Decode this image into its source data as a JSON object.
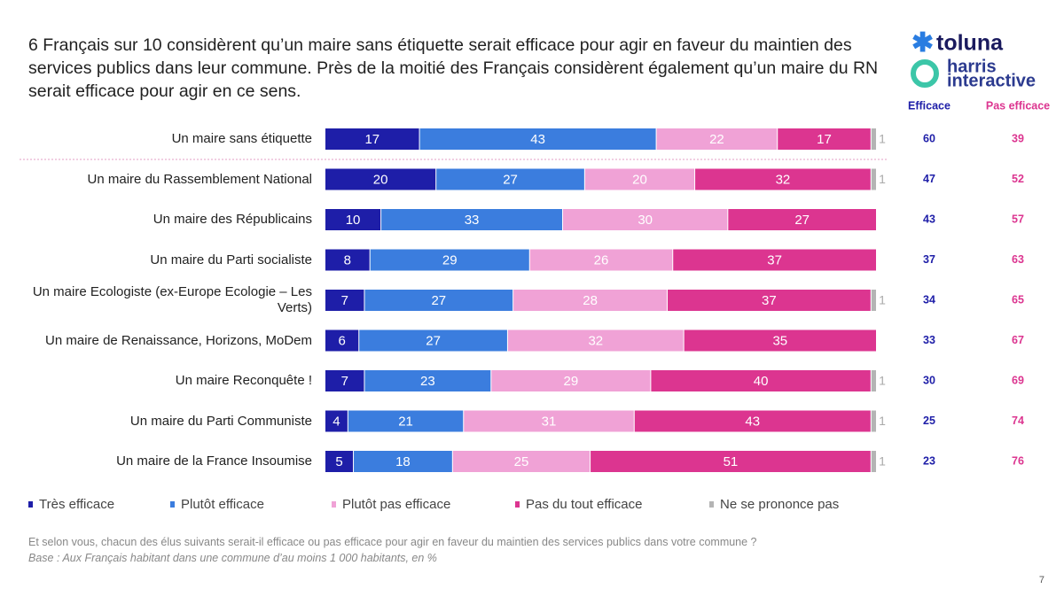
{
  "chart_data": {
    "type": "stacked-bar",
    "title": "6 Français sur 10 considèrent qu’un maire sans étiquette serait efficace pour agir en faveur du maintien des services publics dans leur commune. Près de la moitié des Français considèrent également qu’un maire du RN serait efficace pour agir en ce sens.",
    "categories": [
      "Un maire sans étiquette",
      "Un maire du Rassemblement National",
      "Un maire des Républicains",
      "Un maire du Parti socialiste",
      "Un maire Ecologiste (ex-Europe Ecologie – Les Verts)",
      "Un maire de Renaissance, Horizons, MoDem",
      "Un maire Reconquête !",
      "Un maire du Parti Communiste",
      "Un maire de la France Insoumise"
    ],
    "series": [
      {
        "name": "Très efficace",
        "color": "#1e1ea8",
        "values": [
          17,
          20,
          10,
          8,
          7,
          6,
          7,
          4,
          5
        ]
      },
      {
        "name": "Plutôt efficace",
        "color": "#3b7dde",
        "values": [
          43,
          27,
          33,
          29,
          27,
          27,
          23,
          21,
          18
        ]
      },
      {
        "name": "Plutôt pas efficace",
        "color": "#f0a2d6",
        "values": [
          22,
          20,
          30,
          26,
          28,
          32,
          29,
          31,
          25
        ]
      },
      {
        "name": "Pas du tout efficace",
        "color": "#dc3590",
        "values": [
          17,
          32,
          27,
          37,
          37,
          35,
          40,
          43,
          51
        ]
      },
      {
        "name": "Ne se prononce pas",
        "color": "#b4b4b4",
        "values": [
          1,
          1,
          null,
          null,
          1,
          null,
          1,
          1,
          1
        ]
      }
    ],
    "xlim": [
      0,
      100
    ],
    "summary_columns": [
      {
        "name": "Efficace",
        "color": "#1e1ea8",
        "values": [
          60,
          47,
          43,
          37,
          34,
          33,
          30,
          25,
          23
        ]
      },
      {
        "name": "Pas efficace",
        "color": "#dc3590",
        "values": [
          39,
          52,
          57,
          63,
          65,
          67,
          69,
          74,
          76
        ]
      }
    ],
    "question": "Et selon vous, chacun des élus suivants serait-il efficace ou pas efficace pour agir en faveur du maintien des services publics dans votre commune ?",
    "base": "Base : Aux Français habitant dans une commune d’au moins 1 000 habitants, en %"
  },
  "logo": [
    "toluna",
    "harris",
    "interactive"
  ],
  "page_number": "7"
}
